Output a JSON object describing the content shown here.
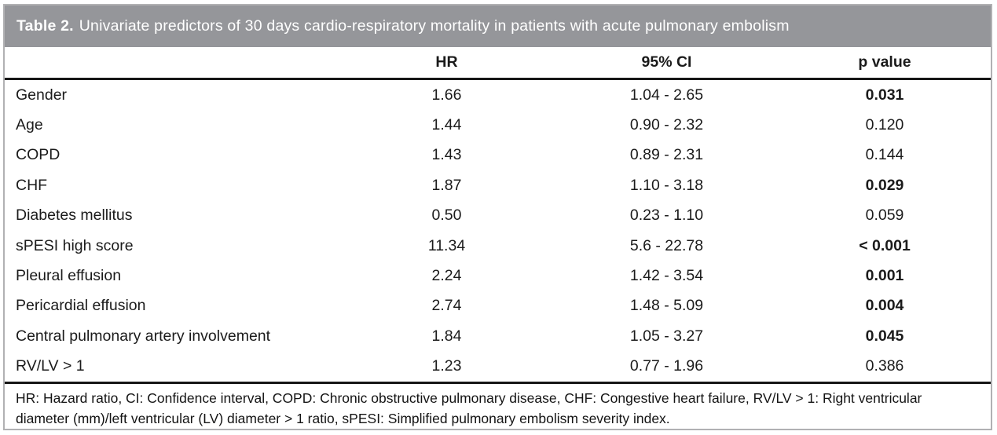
{
  "table": {
    "title": {
      "label": "Table 2.",
      "text": "Univariate predictors of 30 days cardio-respiratory mortality in patients with acute pulmonary embolism"
    },
    "columns": {
      "variable": "",
      "hr": "HR",
      "ci": "95% CI",
      "p": "p value"
    },
    "rows": [
      {
        "name": "Gender",
        "hr": "1.66",
        "ci": "1.04 - 2.65",
        "p": "0.031",
        "p_bold": true
      },
      {
        "name": "Age",
        "hr": "1.44",
        "ci": "0.90 - 2.32",
        "p": "0.120",
        "p_bold": false
      },
      {
        "name": "COPD",
        "hr": "1.43",
        "ci": "0.89 - 2.31",
        "p": "0.144",
        "p_bold": false
      },
      {
        "name": "CHF",
        "hr": "1.87",
        "ci": "1.10 - 3.18",
        "p": "0.029",
        "p_bold": true
      },
      {
        "name": "Diabetes mellitus",
        "hr": "0.50",
        "ci": "0.23 - 1.10",
        "p": "0.059",
        "p_bold": false
      },
      {
        "name": "sPESI high score",
        "hr": "11.34",
        "ci": "5.6 - 22.78",
        "p": "< 0.001",
        "p_bold": true
      },
      {
        "name": "Pleural effusion",
        "hr": "2.24",
        "ci": "1.42 - 3.54",
        "p": "0.001",
        "p_bold": true
      },
      {
        "name": "Pericardial effusion",
        "hr": "2.74",
        "ci": "1.48 - 5.09",
        "p": "0.004",
        "p_bold": true
      },
      {
        "name": "Central pulmonary artery involvement",
        "hr": "1.84",
        "ci": "1.05 - 3.27",
        "p": "0.045",
        "p_bold": true
      },
      {
        "name": "RV/LV > 1",
        "hr": "1.23",
        "ci": "0.77 - 1.96",
        "p": "0.386",
        "p_bold": false
      }
    ],
    "footnote": "HR: Hazard ratio, CI: Confidence interval, COPD: Chronic obstructive pulmonary disease, CHF: Congestive heart failure, RV/LV > 1: Right ventricular diameter (mm)/left ventricular (LV) diameter > 1 ratio, sPESI: Simplified pulmonary embolism severity index."
  },
  "colors": {
    "titlebar_bg": "#95969a",
    "titlebar_text": "#ffffff",
    "rule_black": "#161616",
    "outer_border": "#b1b1b3",
    "body_text": "#1b1b1b"
  }
}
